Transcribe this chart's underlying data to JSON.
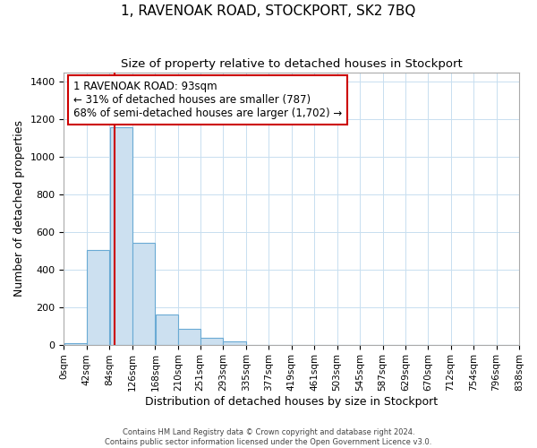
{
  "title": "1, RAVENOAK ROAD, STOCKPORT, SK2 7BQ",
  "subtitle": "Size of property relative to detached houses in Stockport",
  "xlabel": "Distribution of detached houses by size in Stockport",
  "ylabel": "Number of detached properties",
  "bar_edges": [
    0,
    42,
    84,
    126,
    168,
    210,
    251,
    293,
    335,
    377,
    419,
    461,
    503,
    545,
    587,
    629,
    670,
    712,
    754,
    796,
    838
  ],
  "bar_heights": [
    10,
    505,
    1155,
    540,
    160,
    83,
    35,
    18,
    0,
    0,
    0,
    0,
    0,
    0,
    0,
    0,
    0,
    0,
    0,
    0
  ],
  "bar_color": "#cce0f0",
  "bar_edge_color": "#6aaad4",
  "vline_x": 93,
  "vline_color": "#cc0000",
  "annotation_line1": "1 RAVENOAK ROAD: 93sqm",
  "annotation_line2": "← 31% of detached houses are smaller (787)",
  "annotation_line3": "68% of semi-detached houses are larger (1,702) →",
  "ylim": [
    0,
    1450
  ],
  "yticks": [
    0,
    200,
    400,
    600,
    800,
    1000,
    1200,
    1400
  ],
  "tick_labels": [
    "0sqm",
    "42sqm",
    "84sqm",
    "126sqm",
    "168sqm",
    "210sqm",
    "251sqm",
    "293sqm",
    "335sqm",
    "377sqm",
    "419sqm",
    "461sqm",
    "503sqm",
    "545sqm",
    "587sqm",
    "629sqm",
    "670sqm",
    "712sqm",
    "754sqm",
    "796sqm",
    "838sqm"
  ],
  "footer1": "Contains HM Land Registry data © Crown copyright and database right 2024.",
  "footer2": "Contains public sector information licensed under the Open Government Licence v3.0.",
  "background_color": "#ffffff",
  "grid_color": "#c8dff0"
}
